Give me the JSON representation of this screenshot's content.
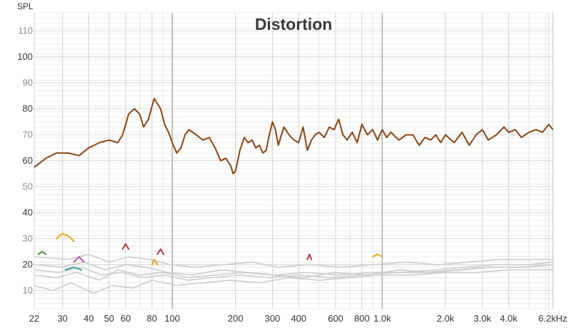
{
  "chart_data": {
    "type": "line",
    "title": "Distortion",
    "ylabel": "SPL",
    "xlabel": "",
    "x_scale": "log",
    "xlim": [
      22,
      6500
    ],
    "ylim": [
      3,
      117
    ],
    "y_ticks": [
      {
        "value": 10,
        "label": "10",
        "emphasis": false
      },
      {
        "value": 20,
        "label": "20",
        "emphasis": true
      },
      {
        "value": 30,
        "label": "30",
        "emphasis": false
      },
      {
        "value": 40,
        "label": "40",
        "emphasis": true
      },
      {
        "value": 50,
        "label": "50",
        "emphasis": false
      },
      {
        "value": 60,
        "label": "60",
        "emphasis": true
      },
      {
        "value": 70,
        "label": "70",
        "emphasis": false
      },
      {
        "value": 80,
        "label": "80",
        "emphasis": true
      },
      {
        "value": 90,
        "label": "90",
        "emphasis": false
      },
      {
        "value": 100,
        "label": "100",
        "emphasis": true
      },
      {
        "value": 110,
        "label": "110",
        "emphasis": false
      }
    ],
    "x_ticks": [
      {
        "value": 22,
        "label": "22"
      },
      {
        "value": 30,
        "label": "30"
      },
      {
        "value": 40,
        "label": "40"
      },
      {
        "value": 50,
        "label": "50"
      },
      {
        "value": 60,
        "label": "60"
      },
      {
        "value": 80,
        "label": "80"
      },
      {
        "value": 100,
        "label": "100"
      },
      {
        "value": 200,
        "label": "200"
      },
      {
        "value": 300,
        "label": "300"
      },
      {
        "value": 400,
        "label": "400"
      },
      {
        "value": 600,
        "label": "600"
      },
      {
        "value": 800,
        "label": "800"
      },
      {
        "value": 1000,
        "label": "1.0k"
      },
      {
        "value": 2000,
        "label": "2.0k"
      },
      {
        "value": 3000,
        "label": "3.0k"
      },
      {
        "value": 4000,
        "label": "4.0k"
      },
      {
        "value": 6200,
        "label": "6.2kHz"
      }
    ],
    "grid": true,
    "minor_y_step": 2,
    "major_x_lines": [
      100,
      1000
    ],
    "series": [
      {
        "role": "fundamental",
        "color": "#8b4513",
        "x": [
          22,
          25,
          28,
          32,
          36,
          40,
          45,
          50,
          55,
          58,
          62,
          66,
          70,
          73,
          77,
          82,
          88,
          92,
          96,
          100,
          105,
          110,
          115,
          120,
          130,
          140,
          150,
          160,
          170,
          180,
          190,
          195,
          200,
          210,
          220,
          230,
          240,
          250,
          260,
          270,
          280,
          290,
          300,
          310,
          320,
          340,
          360,
          380,
          400,
          420,
          440,
          460,
          480,
          500,
          530,
          560,
          590,
          620,
          650,
          680,
          720,
          760,
          800,
          850,
          900,
          950,
          1000,
          1050,
          1100,
          1200,
          1300,
          1400,
          1500,
          1600,
          1700,
          1800,
          1900,
          2000,
          2200,
          2400,
          2600,
          2800,
          3000,
          3200,
          3500,
          3800,
          4000,
          4300,
          4600,
          5000,
          5400,
          5800,
          6200,
          6500
        ],
        "y": [
          57.5,
          61,
          63,
          63,
          62,
          65,
          67,
          68,
          67,
          70,
          78,
          80,
          78,
          73,
          76,
          84,
          80,
          74,
          71,
          67,
          63,
          65,
          70,
          72,
          70,
          68,
          69,
          65,
          60,
          61,
          58,
          55,
          56,
          64,
          69,
          67,
          68,
          65,
          66,
          63,
          64,
          70,
          75,
          72,
          66,
          73,
          70,
          68,
          67,
          73,
          64,
          68,
          70,
          71,
          69,
          73,
          72,
          76,
          70,
          68,
          71,
          67,
          74,
          70,
          72,
          68,
          72,
          69,
          71,
          68,
          70,
          70,
          66,
          69,
          68,
          70,
          67,
          70,
          67,
          71,
          66,
          70,
          72,
          68,
          70,
          73,
          71,
          72,
          69,
          71,
          72,
          71,
          74,
          72
        ]
      }
    ],
    "harmonics": [
      {
        "role": "harmonic",
        "color": "#cccccc",
        "x": [
          22,
          28,
          35,
          45,
          55,
          70,
          90,
          120,
          160,
          220,
          300,
          420,
          600,
          850,
          1200,
          1700,
          2400,
          3400,
          4800,
          6500
        ],
        "y": [
          16,
          15,
          17,
          14,
          18,
          16,
          17,
          15,
          16,
          17,
          16,
          15,
          17,
          16,
          18,
          17,
          18,
          19,
          19,
          20
        ]
      },
      {
        "role": "harmonic",
        "color": "#cccccc",
        "x": [
          22,
          30,
          38,
          48,
          60,
          75,
          95,
          125,
          170,
          230,
          310,
          430,
          620,
          880,
          1250,
          1800,
          2500,
          3500,
          5000,
          6500
        ],
        "y": [
          20,
          19,
          21,
          18,
          20,
          19,
          17,
          16,
          18,
          17,
          16,
          17,
          16,
          17,
          17,
          18,
          19,
          20,
          20,
          21
        ]
      },
      {
        "role": "harmonic",
        "color": "#cccccc",
        "x": [
          22,
          27,
          33,
          42,
          52,
          65,
          80,
          105,
          140,
          190,
          260,
          360,
          500,
          700,
          1000,
          1400,
          2000,
          2800,
          4000,
          5500,
          6500
        ],
        "y": [
          12,
          10,
          13,
          9,
          12,
          11,
          14,
          12,
          13,
          14,
          13,
          15,
          14,
          15,
          16,
          16,
          17,
          17,
          18,
          18,
          18
        ]
      },
      {
        "role": "harmonic",
        "color": "#cccccc",
        "x": [
          22,
          32,
          40,
          50,
          62,
          78,
          98,
          130,
          175,
          240,
          320,
          450,
          640,
          900,
          1300,
          1850,
          2600,
          3600,
          5100,
          6500
        ],
        "y": [
          23,
          22,
          24,
          21,
          23,
          22,
          20,
          19,
          20,
          21,
          19,
          20,
          19,
          20,
          21,
          20,
          21,
          22,
          22,
          22
        ]
      },
      {
        "role": "harmonic",
        "color": "#cccccc",
        "x": [
          22,
          29,
          37,
          46,
          57,
          72,
          92,
          118,
          155,
          210,
          290,
          400,
          570,
          800,
          1150,
          1600,
          2300,
          3200,
          4500,
          6500
        ],
        "y": [
          18,
          17,
          19,
          16,
          17,
          15,
          16,
          14,
          15,
          16,
          15,
          16,
          15,
          16,
          17,
          17,
          18,
          19,
          19,
          20
        ]
      }
    ],
    "harmonic_accents": [
      {
        "color": "#e6a817",
        "x": [
          28,
          30,
          32,
          34
        ],
        "y": [
          30,
          32,
          31,
          29
        ]
      },
      {
        "color": "#2e9e96",
        "x": [
          31,
          34,
          37
        ],
        "y": [
          18,
          19,
          18
        ]
      },
      {
        "color": "#b33a3a",
        "x": [
          58,
          60,
          62
        ],
        "y": [
          26,
          28,
          26
        ]
      },
      {
        "color": "#b33a3a",
        "x": [
          85,
          88,
          91
        ],
        "y": [
          24,
          26,
          24
        ]
      },
      {
        "color": "#3f8f3f",
        "x": [
          23,
          24,
          25
        ],
        "y": [
          24,
          25,
          24
        ]
      },
      {
        "color": "#b34fb3",
        "x": [
          34,
          36,
          38
        ],
        "y": [
          21,
          23,
          21
        ]
      },
      {
        "color": "#e6a817",
        "x": [
          80,
          82,
          85
        ],
        "y": [
          20,
          22,
          20
        ]
      },
      {
        "color": "#b33a3a",
        "x": [
          440,
          450,
          460
        ],
        "y": [
          22,
          24,
          22
        ]
      },
      {
        "color": "#e6a817",
        "x": [
          900,
          950,
          1000
        ],
        "y": [
          23,
          24,
          23
        ]
      }
    ]
  }
}
